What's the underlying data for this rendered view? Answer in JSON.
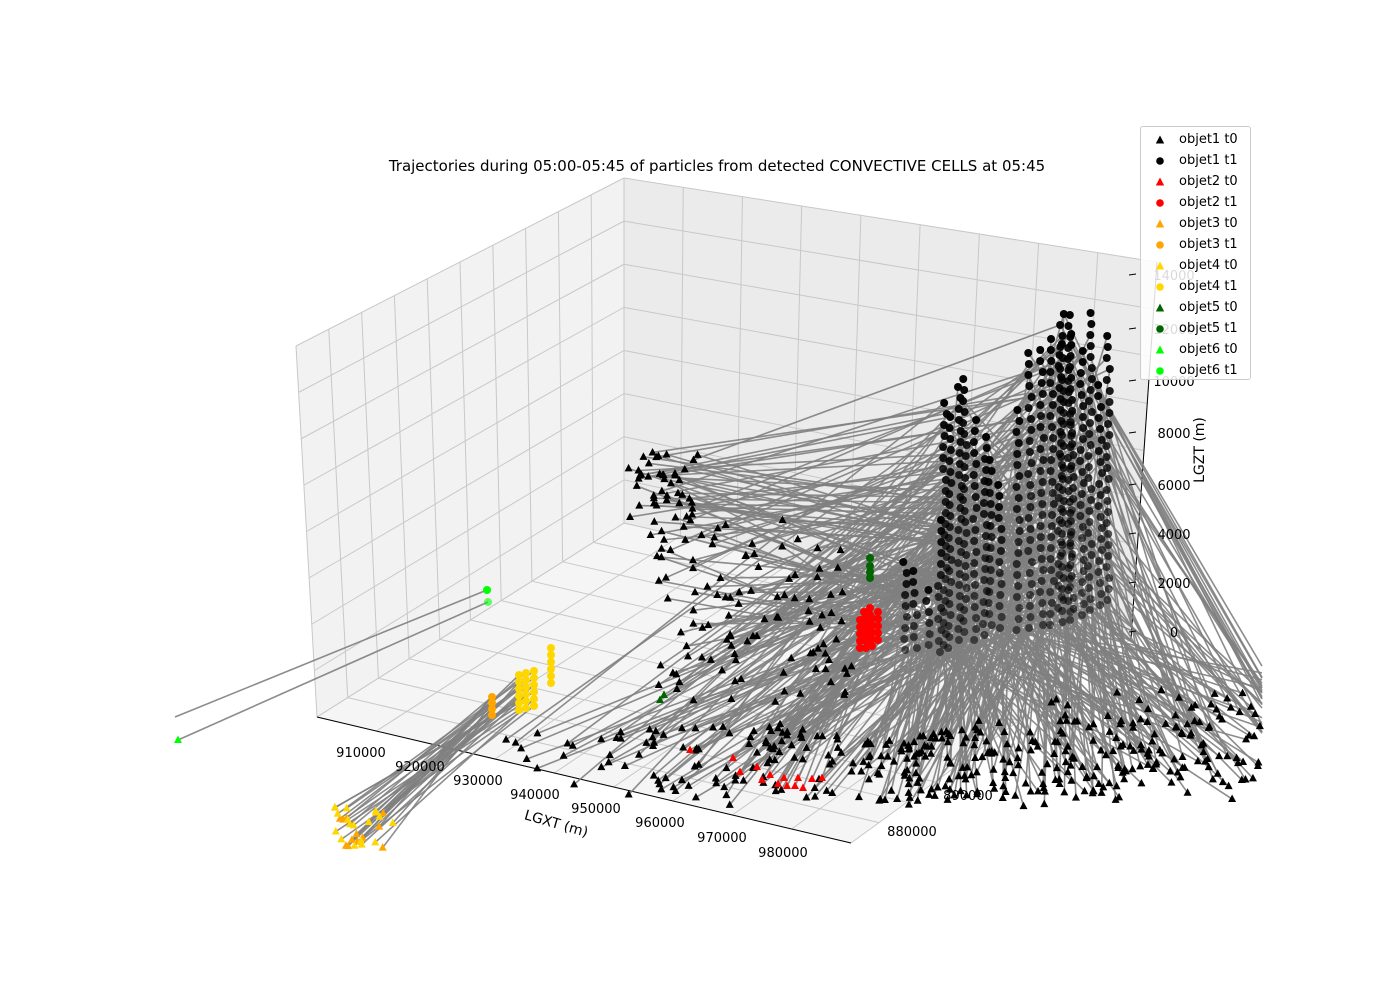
{
  "chart_data": {
    "type": "scatter",
    "subtype": "3d-trajectories",
    "title": "Trajectories during 05:00-05:45 of particles from detected CONVECTIVE CELLS at 05:45",
    "xlabel": "LGXT (m)",
    "ylabel": "",
    "zlabel": "LGZT (m)",
    "x_ticks": [
      "910000",
      "920000",
      "930000",
      "940000",
      "950000",
      "960000",
      "970000",
      "980000"
    ],
    "y_ticks": [
      "880000",
      "890000"
    ],
    "z_ticks": [
      "0",
      "2000",
      "4000",
      "6000",
      "8000",
      "10000",
      "12000",
      "14000"
    ],
    "xlim": [
      905000,
      985000
    ],
    "zlim": [
      0,
      14000
    ],
    "grid": true,
    "legend_position": "top-right",
    "trajectory_color": "#808080",
    "series": [
      {
        "name": "objet1 t0",
        "marker": "triangle",
        "color": "#000000"
      },
      {
        "name": "objet1 t1",
        "marker": "circle",
        "color": "#000000"
      },
      {
        "name": "objet2 t0",
        "marker": "triangle",
        "color": "#ff0000"
      },
      {
        "name": "objet2 t1",
        "marker": "circle",
        "color": "#ff0000"
      },
      {
        "name": "objet3 t0",
        "marker": "triangle",
        "color": "#ffa500"
      },
      {
        "name": "objet3 t1",
        "marker": "circle",
        "color": "#ffa500"
      },
      {
        "name": "objet4 t0",
        "marker": "triangle",
        "color": "#ffd700"
      },
      {
        "name": "objet4 t1",
        "marker": "circle",
        "color": "#ffd700"
      },
      {
        "name": "objet5 t0",
        "marker": "triangle",
        "color": "#006400"
      },
      {
        "name": "objet5 t1",
        "marker": "circle",
        "color": "#006400"
      },
      {
        "name": "objet6 t0",
        "marker": "triangle",
        "color": "#00ff00"
      },
      {
        "name": "objet6 t1",
        "marker": "circle",
        "color": "#00ff00"
      }
    ]
  }
}
